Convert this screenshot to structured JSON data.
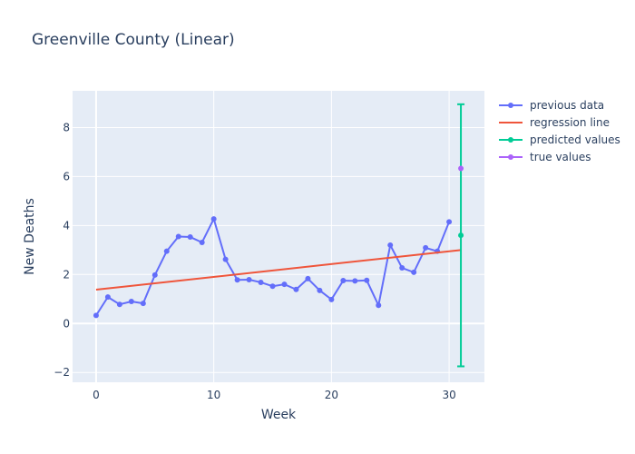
{
  "chart_data": {
    "type": "line",
    "title": "Greenville County (Linear)",
    "xlabel": "Week",
    "ylabel": "New Deaths",
    "xlim": [
      -2,
      33
    ],
    "ylim": [
      -2.4,
      9.5
    ],
    "xticks": [
      0,
      10,
      20,
      30
    ],
    "yticks": [
      -2,
      0,
      2,
      4,
      6,
      8
    ],
    "grid": true,
    "legend_position": "top-right outside",
    "series": [
      {
        "name": "previous data",
        "kind": "line+markers",
        "color": "#636efa",
        "x": [
          0,
          1,
          2,
          3,
          4,
          5,
          6,
          7,
          8,
          9,
          10,
          11,
          12,
          13,
          14,
          15,
          16,
          17,
          18,
          19,
          20,
          21,
          22,
          23,
          24,
          25,
          26,
          27,
          28,
          29,
          30
        ],
        "y": [
          0.33,
          1.08,
          0.78,
          0.9,
          0.82,
          1.98,
          2.95,
          3.55,
          3.53,
          3.31,
          4.27,
          2.62,
          1.78,
          1.79,
          1.68,
          1.52,
          1.6,
          1.39,
          1.83,
          1.35,
          0.98,
          1.75,
          1.74,
          1.76,
          0.74,
          3.2,
          2.27,
          2.09,
          3.09,
          2.95,
          4.15
        ]
      },
      {
        "name": "regression line",
        "kind": "line",
        "color": "#EF553B",
        "x": [
          0,
          31
        ],
        "y": [
          1.38,
          3.0
        ]
      },
      {
        "name": "predicted values",
        "kind": "marker+errorbar",
        "color": "#00cc96",
        "x": [
          31
        ],
        "y": [
          3.6
        ],
        "error_low": [
          -1.75
        ],
        "error_high": [
          8.95
        ]
      },
      {
        "name": "true values",
        "kind": "marker",
        "color": "#ab63fa",
        "x": [
          31
        ],
        "y": [
          6.33
        ]
      }
    ]
  }
}
